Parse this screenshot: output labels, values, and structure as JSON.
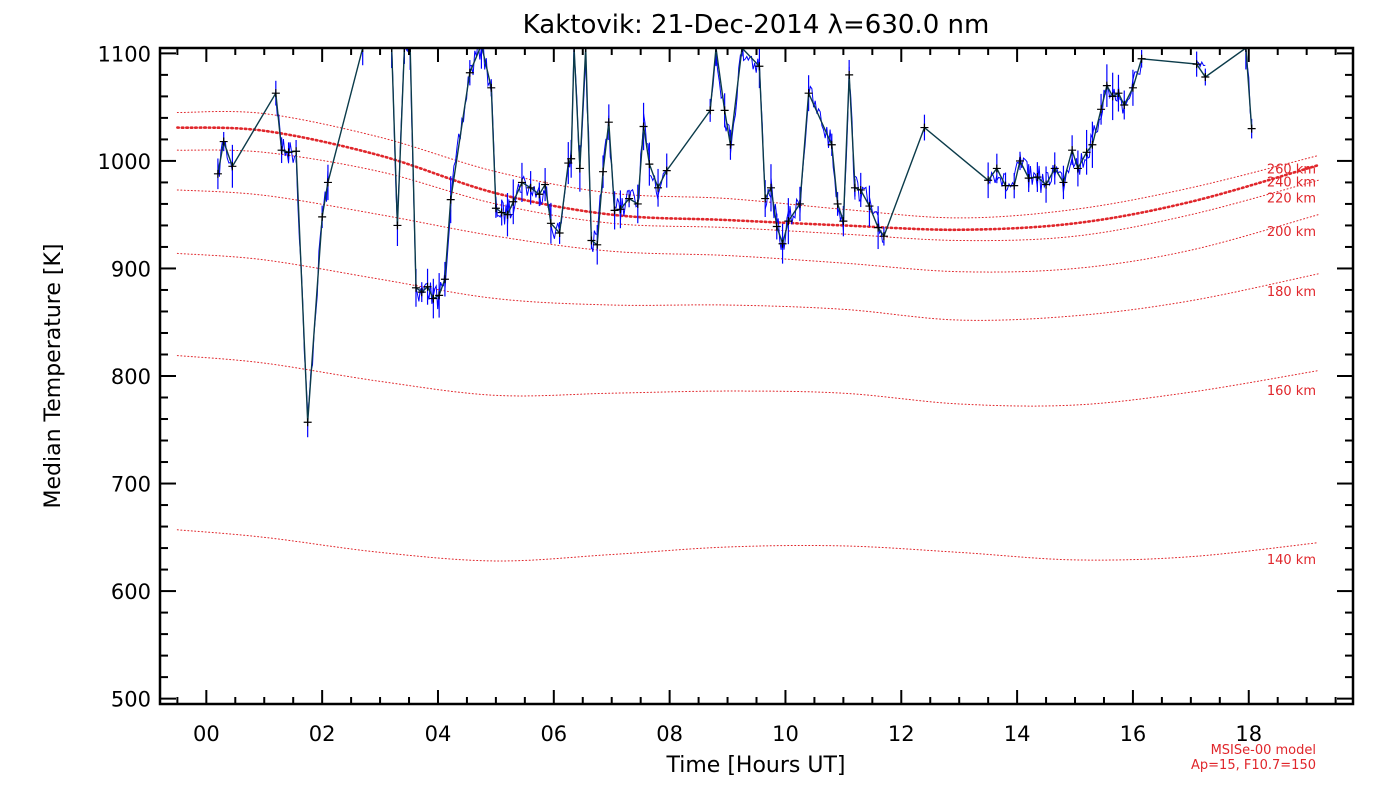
{
  "chart_data": {
    "type": "line",
    "title": "Kaktovik: 21-Dec-2014 λ=630.0 nm",
    "xlabel": "Time [Hours UT]",
    "ylabel": "Median Temperature [K]",
    "xlim": [
      -0.8,
      19.8
    ],
    "ylim": [
      495,
      1105
    ],
    "x_ticks": [
      0,
      2,
      4,
      6,
      8,
      10,
      12,
      14,
      16,
      18
    ],
    "x_tick_labels": [
      "00",
      "02",
      "04",
      "06",
      "08",
      "10",
      "12",
      "14",
      "16",
      "18"
    ],
    "y_ticks": [
      500,
      600,
      700,
      800,
      900,
      1000,
      1100
    ],
    "y_tick_labels": [
      "500",
      "600",
      "700",
      "800",
      "900",
      "1000",
      "1100"
    ],
    "grid": false,
    "colors": {
      "observed": "#0000ff",
      "line": "#0b3b4a",
      "model": "#e0262b",
      "axes": "#000000"
    },
    "series": [
      {
        "x": [
          0.2,
          0.3,
          0.45,
          1.2,
          1.3,
          1.42,
          1.55,
          1.75,
          2.0,
          2.1,
          2.7,
          3.2,
          3.3,
          3.42,
          3.52,
          3.62,
          3.72,
          3.82,
          3.92,
          4.02,
          4.12,
          4.22,
          4.55,
          4.75,
          4.92,
          5.0,
          5.1,
          5.2,
          5.3,
          5.45,
          5.6,
          5.75,
          5.85,
          5.95,
          6.1,
          6.25,
          6.3,
          6.35,
          6.45,
          6.55,
          6.65,
          6.75,
          6.85,
          6.95,
          7.05,
          7.15,
          7.3,
          7.45,
          7.55,
          7.65,
          7.8,
          7.95,
          8.7,
          8.8,
          8.95,
          9.05,
          9.25,
          9.55,
          9.65,
          9.75,
          9.85,
          9.95,
          10.05,
          10.25,
          10.4,
          10.8,
          10.9,
          11.0,
          11.1,
          11.2,
          11.3,
          11.45,
          11.6,
          11.7,
          12.4,
          13.5,
          13.65,
          13.8,
          13.95,
          14.05,
          14.2,
          14.35,
          14.5,
          14.65,
          14.8,
          14.95,
          15.05,
          15.2,
          15.3,
          15.45,
          15.55,
          15.65,
          15.75,
          15.85,
          16.0,
          16.15,
          17.1,
          17.25,
          17.95,
          18.05
        ],
        "y": [
          988,
          1018,
          995,
          1063,
          1010,
          1008,
          1009,
          757,
          948,
          980,
          1105,
          1105,
          940,
          1105,
          1105,
          882,
          878,
          883,
          872,
          875,
          890,
          964,
          1082,
          1108,
          1068,
          956,
          952,
          950,
          962,
          980,
          975,
          969,
          978,
          942,
          933,
          998,
          1002,
          1105,
          993,
          1105,
          926,
          922,
          990,
          1036,
          954,
          955,
          965,
          960,
          1032,
          997,
          975,
          991,
          1047,
          1105,
          1047,
          1015,
          1105,
          1088,
          965,
          975,
          939,
          923,
          944,
          960,
          1063,
          1015,
          960,
          944,
          1080,
          975,
          973,
          958,
          938,
          930,
          1031,
          982,
          993,
          977,
          977,
          1000,
          984,
          985,
          978,
          993,
          980,
          1010,
          993,
          1008,
          1015,
          1048,
          1070,
          1060,
          1063,
          1052,
          1068,
          1095,
          1090,
          1078,
          1105,
          1030
        ]
      }
    ],
    "model_curves": [
      {
        "label": "260 km",
        "x": [
          -0.5,
          1,
          3,
          5,
          7,
          9,
          11,
          13,
          15,
          17,
          19.2
        ],
        "y": [
          1045,
          1044,
          1022,
          990,
          970,
          965,
          955,
          947,
          955,
          975,
          1005
        ]
      },
      {
        "label": "240 km",
        "x": [
          -0.5,
          1,
          3,
          5,
          7,
          9,
          11,
          13,
          15,
          17,
          19.2
        ],
        "y": [
          1031,
          1028,
          1005,
          970,
          950,
          945,
          940,
          936,
          942,
          962,
          996
        ],
        "emphasis": true
      },
      {
        "label": "220 km",
        "x": [
          -0.5,
          1,
          3,
          5,
          7,
          9,
          11,
          13,
          15,
          17,
          19.2
        ],
        "y": [
          1010,
          1008,
          990,
          960,
          942,
          938,
          932,
          926,
          930,
          950,
          982
        ]
      },
      {
        "label": "200 km",
        "x": [
          -0.5,
          1,
          3,
          5,
          7,
          9,
          11,
          13,
          15,
          17,
          19.2
        ],
        "y": [
          973,
          968,
          950,
          930,
          916,
          912,
          905,
          897,
          900,
          917,
          950
        ]
      },
      {
        "label": "180 km",
        "x": [
          -0.5,
          1,
          3,
          5,
          7,
          9,
          11,
          13,
          15,
          17,
          19.2
        ],
        "y": [
          914,
          908,
          890,
          872,
          866,
          866,
          862,
          852,
          856,
          870,
          895
        ]
      },
      {
        "label": "160 km",
        "x": [
          -0.5,
          1,
          3,
          5,
          7,
          9,
          11,
          13,
          15,
          17,
          19.2
        ],
        "y": [
          819,
          812,
          795,
          782,
          784,
          786,
          784,
          774,
          773,
          785,
          805
        ]
      },
      {
        "label": "140 km",
        "x": [
          -0.5,
          1,
          3,
          5,
          7,
          9,
          11,
          13,
          15,
          17,
          19.2
        ],
        "y": [
          657,
          650,
          636,
          628,
          634,
          641,
          642,
          636,
          629,
          632,
          645
        ]
      }
    ],
    "model_label_values": [
      993,
      981,
      966,
      935,
      879,
      787,
      630
    ],
    "annotations": [
      "MSISe-00 model",
      "Ap=15, F10.7=150"
    ]
  }
}
